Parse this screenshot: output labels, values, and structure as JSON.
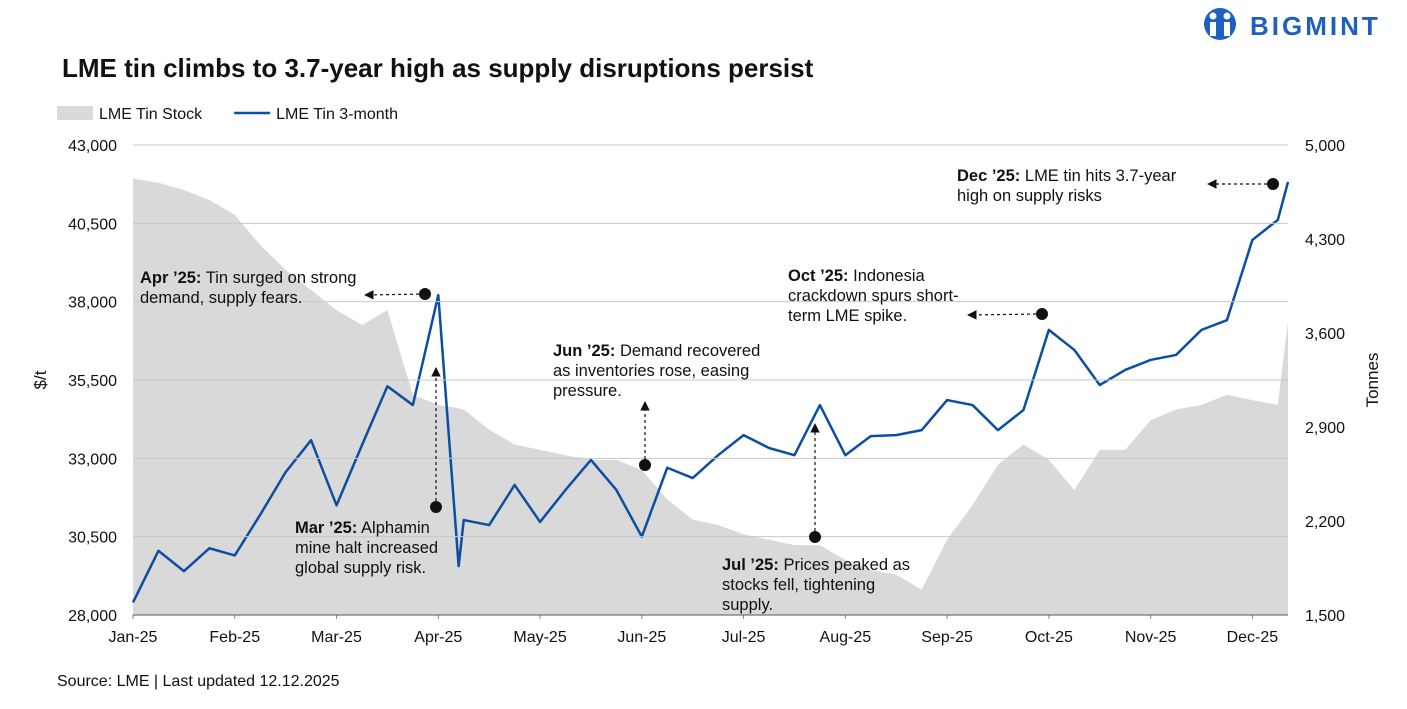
{
  "brand": "BIGMINT",
  "chart_data": {
    "type": "combo",
    "title": "LME tin climbs to 3.7-year high as supply disruptions persist",
    "source": "Source: LME | Last updated 12.12.2025",
    "ylabel": "$/t",
    "y2label": "Tonnes",
    "xlim": [
      0,
      11.35
    ],
    "xticks": [
      {
        "value": 0,
        "label": "Jan-25"
      },
      {
        "value": 1,
        "label": "Feb-25"
      },
      {
        "value": 2,
        "label": "Mar-25"
      },
      {
        "value": 3,
        "label": "Apr-25"
      },
      {
        "value": 4,
        "label": "May-25"
      },
      {
        "value": 5,
        "label": "Jun-25"
      },
      {
        "value": 6,
        "label": "Jul-25"
      },
      {
        "value": 7,
        "label": "Aug-25"
      },
      {
        "value": 8,
        "label": "Sep-25"
      },
      {
        "value": 9,
        "label": "Oct-25"
      },
      {
        "value": 10,
        "label": "Nov-25"
      },
      {
        "value": 11,
        "label": "Dec-25"
      }
    ],
    "ylim": [
      28000,
      43000
    ],
    "yticks": [
      {
        "value": 28000,
        "label": "28,000"
      },
      {
        "value": 30500,
        "label": "30,500"
      },
      {
        "value": 33000,
        "label": "33,000"
      },
      {
        "value": 35500,
        "label": "35,500"
      },
      {
        "value": 38000,
        "label": "38,000"
      },
      {
        "value": 40500,
        "label": "40,500"
      },
      {
        "value": 43000,
        "label": "43,000"
      }
    ],
    "y2lim": [
      1500,
      5000
    ],
    "y2ticks": [
      {
        "value": 1500,
        "label": "1,500"
      },
      {
        "value": 2200,
        "label": "2,200"
      },
      {
        "value": 2900,
        "label": "2,900"
      },
      {
        "value": 3600,
        "label": "3,600"
      },
      {
        "value": 4300,
        "label": "4,300"
      },
      {
        "value": 5000,
        "label": "5,000"
      }
    ],
    "grid": true,
    "x": [
      0,
      0.25,
      0.5,
      0.75,
      1,
      1.25,
      1.5,
      1.75,
      2,
      2.25,
      2.5,
      2.75,
      3,
      3.2,
      3.25,
      3.5,
      3.75,
      4,
      4.25,
      4.5,
      4.75,
      5,
      5.25,
      5.5,
      5.75,
      6,
      6.25,
      6.5,
      6.75,
      7,
      7.25,
      7.5,
      7.75,
      8,
      8.25,
      8.5,
      8.75,
      9,
      9.25,
      9.5,
      9.75,
      10,
      10.25,
      10.5,
      10.75,
      11,
      11.25,
      11.35
    ],
    "series": [
      {
        "name": "LME Tin Stock",
        "type": "area",
        "axis": "y2",
        "color": "#d9d9d9",
        "values": [
          4750,
          4720,
          4665,
          4590,
          4480,
          4255,
          4070,
          3920,
          3770,
          3660,
          3770,
          3140,
          3065,
          3040,
          3030,
          2880,
          2770,
          2730,
          2690,
          2655,
          2655,
          2580,
          2360,
          2210,
          2170,
          2100,
          2060,
          2020,
          2020,
          1910,
          1835,
          1800,
          1690,
          2060,
          2320,
          2620,
          2770,
          2655,
          2430,
          2730,
          2730,
          2950,
          3030,
          3065,
          3140,
          3100,
          3065,
          3680
        ]
      },
      {
        "name": "LME Tin 3-month",
        "type": "line",
        "axis": "y",
        "color": "#0b4ea2",
        "values": [
          28400,
          30050,
          29400,
          30130,
          29900,
          31200,
          32560,
          33580,
          31500,
          33420,
          35300,
          34700,
          38210,
          29560,
          31030,
          30870,
          32150,
          30970,
          31990,
          32950,
          31990,
          30500,
          32700,
          32370,
          33100,
          33740,
          33330,
          33100,
          34700,
          33100,
          33710,
          33740,
          33900,
          34860,
          34700,
          33900,
          34540,
          37100,
          36460,
          35340,
          35820,
          36140,
          36300,
          37100,
          37410,
          39970,
          40610,
          41820
        ]
      }
    ],
    "annotations": [
      {
        "bold": "Apr ’25:",
        "lines": [
          "Tin surged on strong",
          "demand, supply fears."
        ]
      },
      {
        "bold": "Mar ’25:",
        "lines": [
          "Alphamin",
          "mine halt increased",
          "global supply risk."
        ]
      },
      {
        "bold": "Jun ’25:",
        "lines": [
          "Demand recovered",
          "as inventories rose, easing",
          "pressure."
        ]
      },
      {
        "bold": "Jul ’25:",
        "lines": [
          "Prices peaked as",
          "stocks fell, tightening",
          "supply."
        ]
      },
      {
        "bold": "Oct ’25:",
        "lines": [
          "Indonesia",
          "crackdown spurs short-",
          "term LME spike."
        ]
      },
      {
        "bold": "Dec ’25:",
        "lines": [
          "LME tin hits 3.7-year",
          "high on supply risks"
        ]
      }
    ]
  }
}
